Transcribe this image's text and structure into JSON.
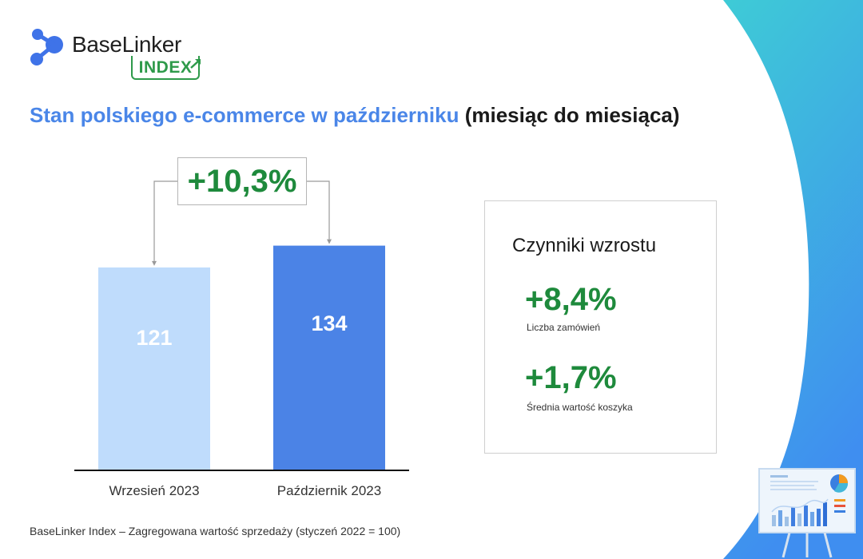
{
  "logo": {
    "name": "BaseLinker",
    "badge": "INDEX"
  },
  "title": {
    "highlight": "Stan polskiego e-commerce w październiku",
    "rest": "(miesiąc do miesiąca)"
  },
  "change_label": "+10,3%",
  "colors": {
    "bar_previous": "#bfdcfc",
    "bar_current": "#4b83e6",
    "positive_green": "#1e8a3c",
    "title_blue": "#4a86e8",
    "background_gradient": [
      "#3ecbd6",
      "#3f8ef0"
    ]
  },
  "chart_data": {
    "type": "bar",
    "categories": [
      "Wrzesień 2023",
      "Październik 2023"
    ],
    "values": [
      121,
      134
    ],
    "title": "Stan polskiego e-commerce w październiku (miesiąc do miesiąca)",
    "xlabel": "",
    "ylabel": "",
    "grid": false
  },
  "factors": {
    "title": "Czynniki wzrostu",
    "items": [
      {
        "value": "+8,4%",
        "label": "Liczba zamówień"
      },
      {
        "value": "+1,7%",
        "label": "Średnia wartość koszyka"
      }
    ]
  },
  "footnote": "BaseLinker Index – Zagregowana wartość sprzedaży (styczeń 2022 = 100)",
  "decoration": {
    "icon": "presentation-board-icon"
  }
}
